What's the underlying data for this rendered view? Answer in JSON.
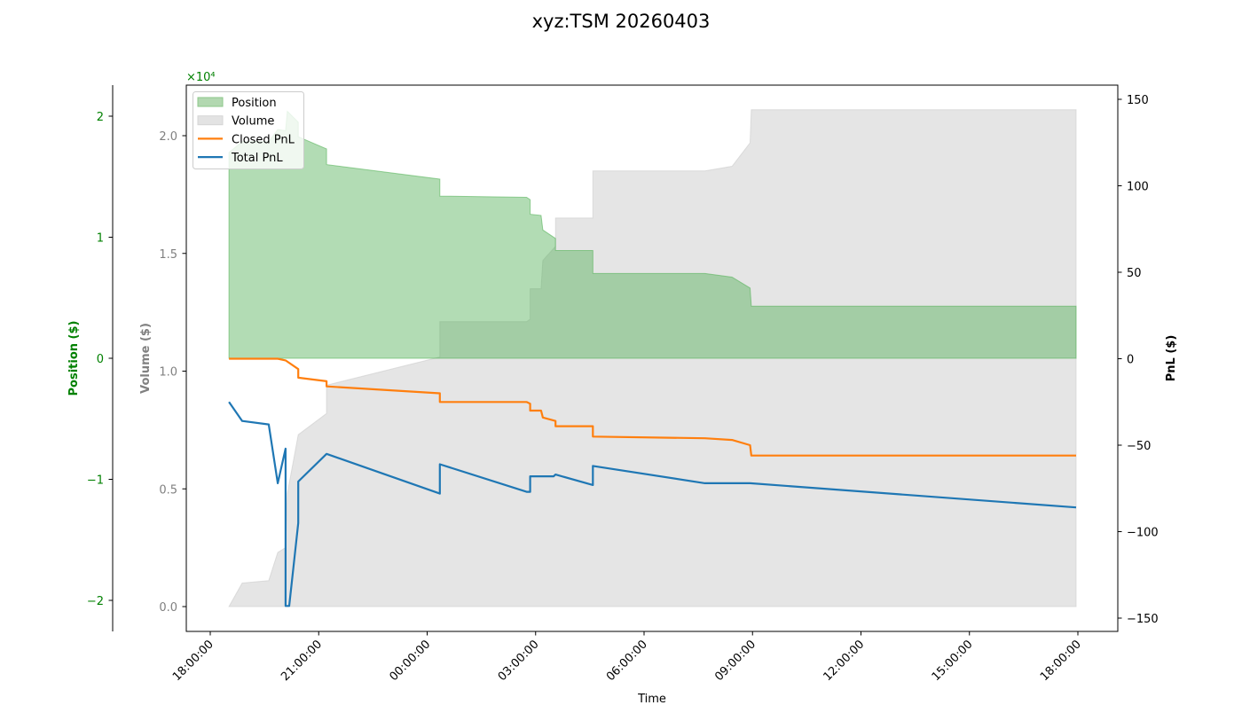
{
  "figure": {
    "title": "xyz:TSM 20260403"
  },
  "legend": {
    "items": [
      {
        "label": "Position",
        "kind": "patch",
        "color": "#b2d8b0",
        "edge": "#8cc78a"
      },
      {
        "label": "Volume",
        "kind": "patch",
        "color": "#e3e3e3",
        "edge": "#d6d6d6"
      },
      {
        "label": "Closed PnL",
        "kind": "line",
        "color": "#ff7f0e"
      },
      {
        "label": "Total PnL",
        "kind": "line",
        "color": "#1f77b4"
      }
    ]
  },
  "colors": {
    "position_fill": "#4caf50",
    "position_axis": "#008000",
    "volume_fill": "#cccccc",
    "volume_axis": "#808080",
    "closed_pnl": "#ff7f0e",
    "total_pnl": "#1f77b4",
    "pnl_axis": "#000000"
  },
  "chart_data": {
    "type": "line",
    "title": "xyz:TSM 20260403",
    "xlabel": "Time",
    "x_tick_labels": [
      "18:00:00",
      "21:00:00",
      "00:00:00",
      "03:00:00",
      "06:00:00",
      "09:00:00",
      "12:00:00",
      "15:00:00",
      "18:00:00"
    ],
    "x_tick_hours": [
      0,
      3,
      6,
      9,
      12,
      15,
      18,
      21,
      24
    ],
    "x_range_hours_from_1800": [
      -0.66,
      25.11
    ],
    "axes": {
      "position": {
        "label": "Position ($)",
        "side": "left-outer",
        "offset_text": "×10⁴",
        "ticks": [
          -2,
          -1,
          0,
          1,
          2
        ],
        "tick_labels": [
          "−2",
          "−1",
          "0",
          "1",
          "2"
        ],
        "ylim": [
          -2.2,
          2.3
        ],
        "scale": 10000
      },
      "volume": {
        "label": "Volume ($)",
        "side": "left-inner",
        "ticks": [
          0.0,
          0.5,
          1.0,
          1.5,
          2.0
        ],
        "tick_labels": [
          "0.0",
          "0.5",
          "1.0",
          "1.5",
          "2.0"
        ],
        "ylim": [
          -0.1,
          2.22
        ],
        "scale": 10000
      },
      "pnl": {
        "label": "PnL ($)",
        "side": "right",
        "ticks": [
          -150,
          -100,
          -50,
          0,
          50,
          100,
          150
        ],
        "tick_labels": [
          "−150",
          "−100",
          "−50",
          "0",
          "50",
          "100",
          "150"
        ],
        "ylim": [
          -157,
          161
        ]
      }
    },
    "series": [
      {
        "name": "Position",
        "type": "area",
        "axis": "position",
        "units": "x1e4 $",
        "x": [
          "18:31",
          "18:31",
          "18:53",
          "19:37",
          "19:52",
          "20:05",
          "20:08",
          "20:26",
          "20:26",
          "21:13",
          "21:13",
          "00:21",
          "00:21",
          "02:45",
          "02:51",
          "02:51",
          "03:09",
          "03:12",
          "03:33",
          "03:33",
          "04:35",
          "04:35",
          "07:41",
          "08:26",
          "08:56",
          "08:58",
          "17:57",
          "17:57"
        ],
        "values": [
          0,
          1.7,
          1.79,
          1.79,
          1.89,
          1.88,
          2.04,
          1.95,
          1.83,
          1.73,
          1.6,
          1.48,
          1.34,
          1.33,
          1.31,
          1.19,
          1.18,
          1.06,
          0.99,
          0.89,
          0.89,
          0.7,
          0.7,
          0.67,
          0.58,
          0.43,
          0.43,
          0
        ]
      },
      {
        "name": "Volume",
        "type": "area",
        "axis": "volume",
        "units": "x1e4 $",
        "x": [
          "18:31",
          "18:53",
          "19:37",
          "19:52",
          "20:05",
          "20:08",
          "20:26",
          "21:13",
          "21:13",
          "00:21",
          "00:21",
          "02:45",
          "02:51",
          "02:51",
          "03:09",
          "03:12",
          "03:33",
          "03:33",
          "04:35",
          "04:35",
          "07:41",
          "08:26",
          "08:56",
          "08:58",
          "17:57"
        ],
        "values": [
          0,
          0.1,
          0.11,
          0.23,
          0.25,
          0.48,
          0.73,
          0.82,
          0.94,
          1.06,
          1.21,
          1.21,
          1.22,
          1.35,
          1.35,
          1.47,
          1.53,
          1.65,
          1.65,
          1.85,
          1.85,
          1.87,
          1.97,
          2.11,
          2.11
        ]
      },
      {
        "name": "Closed PnL",
        "type": "line",
        "axis": "pnl",
        "x": [
          "18:31",
          "19:52",
          "20:05",
          "20:26",
          "20:26",
          "21:13",
          "21:13",
          "00:21",
          "00:21",
          "02:45",
          "02:51",
          "02:51",
          "03:09",
          "03:12",
          "03:33",
          "03:33",
          "04:35",
          "04:35",
          "07:41",
          "08:26",
          "08:56",
          "08:58",
          "17:57"
        ],
        "values": [
          0,
          0,
          -1,
          -6,
          -11,
          -13,
          -16,
          -20,
          -25,
          -25,
          -26,
          -30,
          -30,
          -34,
          -36,
          -39,
          -39,
          -45,
          -46,
          -47,
          -50,
          -56,
          -56
        ]
      },
      {
        "name": "Total PnL",
        "type": "line",
        "axis": "pnl",
        "x": [
          "18:31",
          "18:53",
          "19:37",
          "19:52",
          "20:05",
          "20:05",
          "20:11",
          "20:26",
          "20:26",
          "21:13",
          "00:21",
          "00:21",
          "02:45",
          "02:51",
          "02:51",
          "03:30",
          "03:33",
          "04:35",
          "04:35",
          "07:41",
          "08:26",
          "08:56",
          "17:57"
        ],
        "values": [
          -25,
          -36,
          -38,
          -72,
          -52,
          -143,
          -143,
          -95,
          -71,
          -55,
          -78,
          -61,
          -77,
          -77,
          -68,
          -68,
          -67,
          -73,
          -62,
          -72,
          -72,
          -72,
          -86
        ]
      }
    ],
    "legend_position": "upper left",
    "grid": false
  }
}
